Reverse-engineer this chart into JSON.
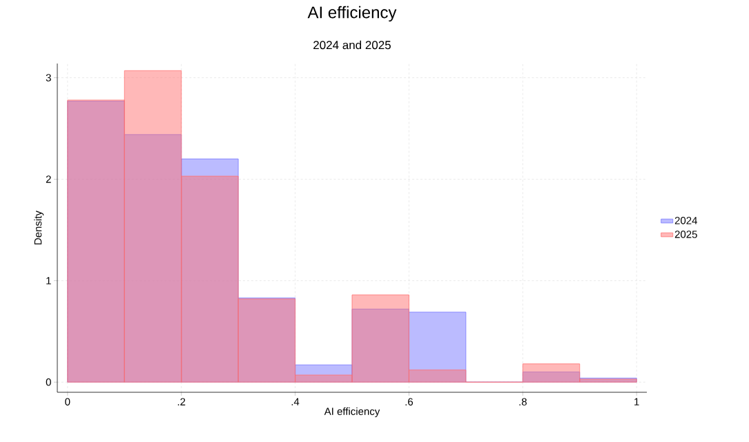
{
  "chart_data": {
    "type": "histogram",
    "title": "AI efficiency",
    "subtitle": "2024 and 2025",
    "xlabel": "AI efficiency",
    "ylabel": "Density",
    "bins": [
      0,
      0.1,
      0.2,
      0.3,
      0.4,
      0.5,
      0.6,
      0.7,
      0.8,
      0.9,
      1.0
    ],
    "series": [
      {
        "name": "2024",
        "color": "#7777ff",
        "values": [
          2.77,
          2.44,
          2.2,
          0.83,
          0.17,
          0.72,
          0.69,
          0,
          0.1,
          0.04
        ]
      },
      {
        "name": "2025",
        "color": "#ff7171",
        "values": [
          2.78,
          3.07,
          2.03,
          0.82,
          0.07,
          0.86,
          0.12,
          0,
          0.18,
          0.03
        ]
      }
    ],
    "xlim": [
      -0.018,
      1.018
    ],
    "ylim": [
      -0.1,
      3.14
    ],
    "xticks": [
      0,
      {
        "value": 0.2,
        "label": ".2"
      },
      {
        "value": 0.4,
        "label": ".4"
      },
      {
        "value": 0.6,
        "label": ".6"
      },
      {
        "value": 0.8,
        "label": ".8"
      },
      1
    ],
    "yticks": [
      0,
      1,
      2,
      3
    ],
    "grid": true,
    "legend": "right"
  }
}
